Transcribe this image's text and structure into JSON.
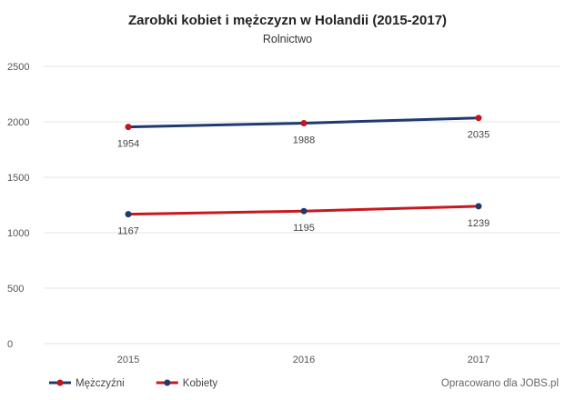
{
  "chart_data": {
    "type": "line",
    "title": "Zarobki kobiet i mężczyzn w Holandii (2015-2017)",
    "subtitle": "Rolnictwo",
    "categories": [
      "2015",
      "2016",
      "2017"
    ],
    "ylim": [
      0,
      2500
    ],
    "yticks": [
      0,
      500,
      1000,
      1500,
      2000,
      2500
    ],
    "grid": true,
    "legend_position": "bottom-left",
    "series": [
      {
        "name": "Mężczyźni",
        "values": [
          1954,
          1988,
          2035
        ],
        "line_color": "#1f3a6e",
        "marker_color": "#c0161c"
      },
      {
        "name": "Kobiety",
        "values": [
          1167,
          1195,
          1239
        ],
        "line_color": "#c8191e",
        "marker_color": "#1f3a6e"
      }
    ],
    "credit": "Opracowano dla JOBS.pl"
  }
}
